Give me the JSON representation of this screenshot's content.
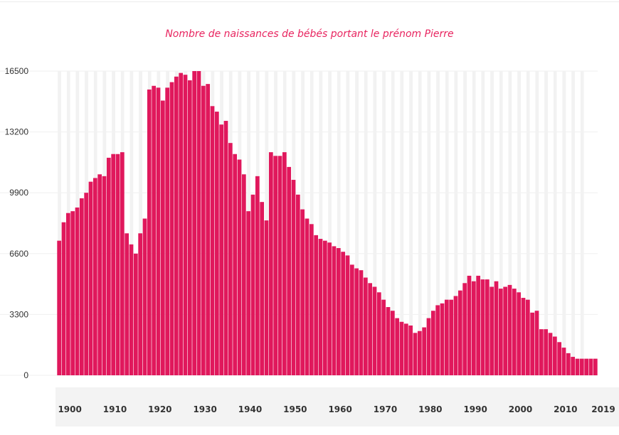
{
  "chart_data": {
    "type": "bar",
    "title": "Nombre de naissances de bébés portant le prénom Pierre",
    "xlabel": "",
    "ylabel": "",
    "ylim": [
      0,
      16500
    ],
    "yticks": [
      0,
      3300,
      6600,
      9900,
      13200,
      16500
    ],
    "xtick_labels": [
      "1900",
      "1910",
      "1920",
      "1930",
      "1940",
      "1950",
      "1960",
      "1970",
      "1980",
      "1990",
      "2000",
      "2010",
      "2019"
    ],
    "grid": true,
    "colors": {
      "bar": "#e0185c",
      "title": "#e8245f",
      "grid": "#efefef"
    },
    "years": [
      1900,
      1901,
      1902,
      1903,
      1904,
      1905,
      1906,
      1907,
      1908,
      1909,
      1910,
      1911,
      1912,
      1913,
      1914,
      1915,
      1916,
      1917,
      1918,
      1919,
      1920,
      1921,
      1922,
      1923,
      1924,
      1925,
      1926,
      1927,
      1928,
      1929,
      1930,
      1931,
      1932,
      1933,
      1934,
      1935,
      1936,
      1937,
      1938,
      1939,
      1940,
      1941,
      1942,
      1943,
      1944,
      1945,
      1946,
      1947,
      1948,
      1949,
      1950,
      1951,
      1952,
      1953,
      1954,
      1955,
      1956,
      1957,
      1958,
      1959,
      1960,
      1961,
      1962,
      1963,
      1964,
      1965,
      1966,
      1967,
      1968,
      1969,
      1970,
      1971,
      1972,
      1973,
      1974,
      1975,
      1976,
      1977,
      1978,
      1979,
      1980,
      1981,
      1982,
      1983,
      1984,
      1985,
      1986,
      1987,
      1988,
      1989,
      1990,
      1991,
      1992,
      1993,
      1994,
      1995,
      1996,
      1997,
      1998,
      1999,
      2000,
      2001,
      2002,
      2003,
      2004,
      2005,
      2006,
      2007,
      2008,
      2009,
      2010,
      2011,
      2012,
      2013,
      2014,
      2015,
      2016,
      2017,
      2018,
      2019
    ],
    "values": [
      7300,
      8300,
      8800,
      8900,
      9100,
      9600,
      9900,
      10500,
      10700,
      10900,
      10800,
      11800,
      12000,
      12000,
      12100,
      7700,
      7100,
      6600,
      7700,
      8500,
      15500,
      15700,
      15600,
      14900,
      15600,
      15900,
      16200,
      16400,
      16300,
      16000,
      16500,
      16500,
      15700,
      15800,
      14600,
      14300,
      13600,
      13800,
      12600,
      12000,
      11700,
      10900,
      8900,
      9800,
      10800,
      9400,
      8400,
      12100,
      11900,
      11900,
      12100,
      11300,
      10600,
      9800,
      9000,
      8500,
      8200,
      7600,
      7400,
      7300,
      7200,
      7000,
      6900,
      6700,
      6500,
      6000,
      5800,
      5700,
      5300,
      5000,
      4800,
      4500,
      4100,
      3700,
      3500,
      3100,
      2900,
      2800,
      2700,
      2300,
      2400,
      2600,
      3100,
      3500,
      3800,
      3900,
      4100,
      4100,
      4300,
      4600,
      5000,
      5400,
      5100,
      5400,
      5200,
      5200,
      4800,
      5100,
      4700,
      4800,
      4900,
      4700,
      4500,
      4200,
      4100,
      3400,
      3500,
      2500,
      2500,
      2300,
      2100,
      1800,
      1500,
      1200,
      1000,
      900,
      900,
      900,
      900,
      900
    ]
  }
}
